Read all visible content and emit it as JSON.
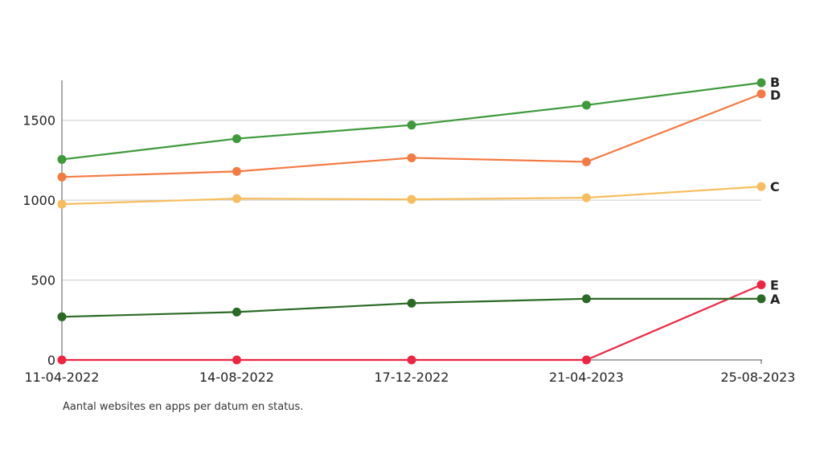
{
  "chart_data": {
    "type": "line",
    "title": "",
    "xlabel": "",
    "ylabel": "",
    "caption": "Aantal websites en apps per datum en status.",
    "x": [
      "11-04-2022",
      "14-08-2022",
      "17-12-2022",
      "21-04-2023",
      "25-08-2023"
    ],
    "ylim": [
      0,
      1750
    ],
    "yticks": [
      0,
      500,
      1000,
      1500
    ],
    "grid": true,
    "legend": "end-of-line labels",
    "series": [
      {
        "name": "B",
        "color": "#3e9a3b",
        "values": [
          1255,
          1385,
          1470,
          1595,
          1735
        ]
      },
      {
        "name": "D",
        "color": "#f47a42",
        "values": [
          1145,
          1180,
          1265,
          1240,
          1665
        ]
      },
      {
        "name": "C",
        "color": "#f6bd5e",
        "values": [
          975,
          1010,
          1005,
          1015,
          1085
        ]
      },
      {
        "name": "E",
        "color": "#ee2541",
        "values": [
          0,
          0,
          0,
          0,
          470
        ]
      },
      {
        "name": "A",
        "color": "#2a6a25",
        "values": [
          270,
          300,
          355,
          383,
          383
        ]
      }
    ]
  }
}
